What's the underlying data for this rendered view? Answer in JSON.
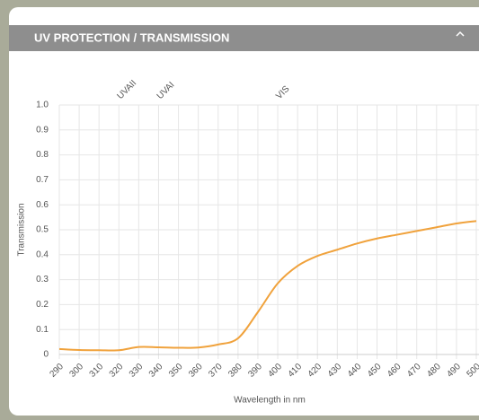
{
  "chart_data": {
    "type": "line",
    "title": "UV PROTECTION / TRANSMISSION",
    "xlabel": "Wavelength in nm",
    "ylabel": "Transmission",
    "x": [
      290,
      300,
      310,
      320,
      330,
      340,
      350,
      360,
      370,
      380,
      390,
      400,
      410,
      420,
      430,
      440,
      450,
      460,
      470,
      480,
      490,
      500
    ],
    "series": [
      {
        "name": "Transmission",
        "color": "#f0a23c",
        "values": [
          0.022,
          0.018,
          0.017,
          0.017,
          0.03,
          0.029,
          0.027,
          0.028,
          0.04,
          0.065,
          0.17,
          0.285,
          0.355,
          0.395,
          0.42,
          0.445,
          0.465,
          0.48,
          0.495,
          0.51,
          0.525,
          0.535
        ]
      }
    ],
    "annotations": [
      {
        "x": 320,
        "text": "UVAII"
      },
      {
        "x": 340,
        "text": "UVAI"
      },
      {
        "x": 400,
        "text": "VIS"
      }
    ],
    "xlim": [
      290,
      500
    ],
    "xticks": [
      290,
      300,
      310,
      320,
      330,
      340,
      350,
      360,
      370,
      380,
      390,
      400,
      410,
      420,
      430,
      440,
      450,
      460,
      470,
      480,
      490,
      500
    ],
    "ylim": [
      0,
      1
    ],
    "yticks": [
      0,
      0.1,
      0.2,
      0.3,
      0.4,
      0.5,
      0.6,
      0.7,
      0.8,
      0.9,
      {
        "value": 1,
        "label": "1.0"
      }
    ],
    "grid": true
  }
}
